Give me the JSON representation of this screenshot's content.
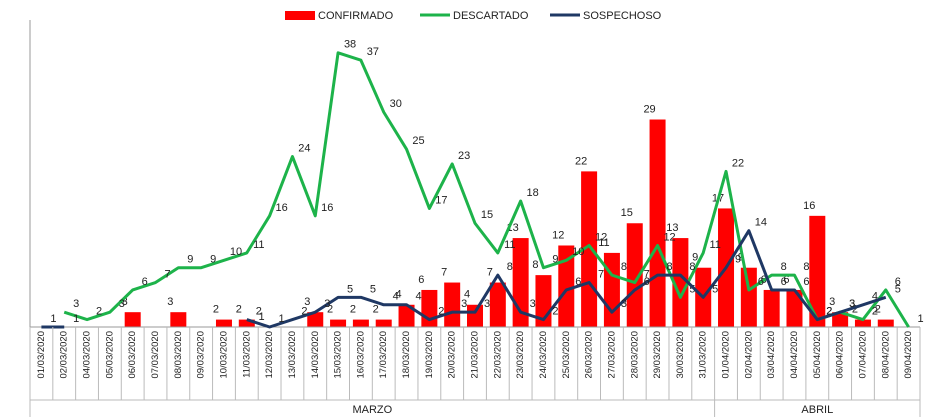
{
  "chart_data": {
    "type": "combo",
    "categories": [
      "01/03/2020",
      "02/03/2020",
      "04/03/2020",
      "05/03/2020",
      "06/03/2020",
      "07/03/2020",
      "08/03/2020",
      "09/03/2020",
      "10/03/2020",
      "11/03/2020",
      "12/03/2020",
      "13/03/2020",
      "14/03/2020",
      "15/03/2020",
      "16/03/2020",
      "17/03/2020",
      "18/03/2020",
      "19/03/2020",
      "20/03/2020",
      "21/03/2020",
      "22/03/2020",
      "23/03/2020",
      "24/03/2020",
      "25/03/2020",
      "26/03/2020",
      "27/03/2020",
      "28/03/2020",
      "29/03/2020",
      "30/03/2020",
      "31/03/2020",
      "01/04/2020",
      "02/04/2020",
      "03/04/2020",
      "04/04/2020",
      "05/04/2020",
      "06/04/2020",
      "07/04/2020",
      "08/04/2020",
      "09/04/2020"
    ],
    "groups": [
      {
        "name": "MARZO",
        "count": 30
      },
      {
        "name": "ABRIL",
        "count": 9
      }
    ],
    "ylim": [
      1,
      40
    ],
    "series": [
      {
        "name": "CONFIRMADO",
        "kind": "bar",
        "color": "#ff0000",
        "values": [
          null,
          null,
          null,
          null,
          3,
          null,
          3,
          null,
          2,
          2,
          1,
          null,
          3,
          2,
          2,
          2,
          4,
          6,
          7,
          4,
          7,
          13,
          8,
          12,
          22,
          11,
          15,
          29,
          13,
          9,
          17,
          9,
          6,
          6,
          16,
          3,
          2,
          2,
          null
        ]
      },
      {
        "name": "DESCARTADO",
        "kind": "line",
        "color": "#1db34a",
        "values": [
          null,
          3,
          2,
          3,
          6,
          7,
          9,
          9,
          10,
          11,
          16,
          24,
          16,
          38,
          37,
          30,
          25,
          17,
          23,
          15,
          11,
          18,
          9,
          10,
          12,
          8,
          7,
          12,
          5,
          11,
          22,
          6,
          8,
          8,
          2,
          3,
          2,
          6,
          1
        ]
      },
      {
        "name": "SOSPECHOSO",
        "kind": "line",
        "color": "#1f3864",
        "values": [
          1,
          1,
          null,
          null,
          null,
          null,
          null,
          null,
          null,
          2,
          1,
          2,
          3,
          5,
          5,
          4,
          4,
          2,
          3,
          3,
          8,
          3,
          2,
          6,
          7,
          3,
          6,
          8,
          8,
          5,
          9,
          14,
          6,
          6,
          2,
          3,
          4,
          5,
          null
        ]
      }
    ]
  }
}
